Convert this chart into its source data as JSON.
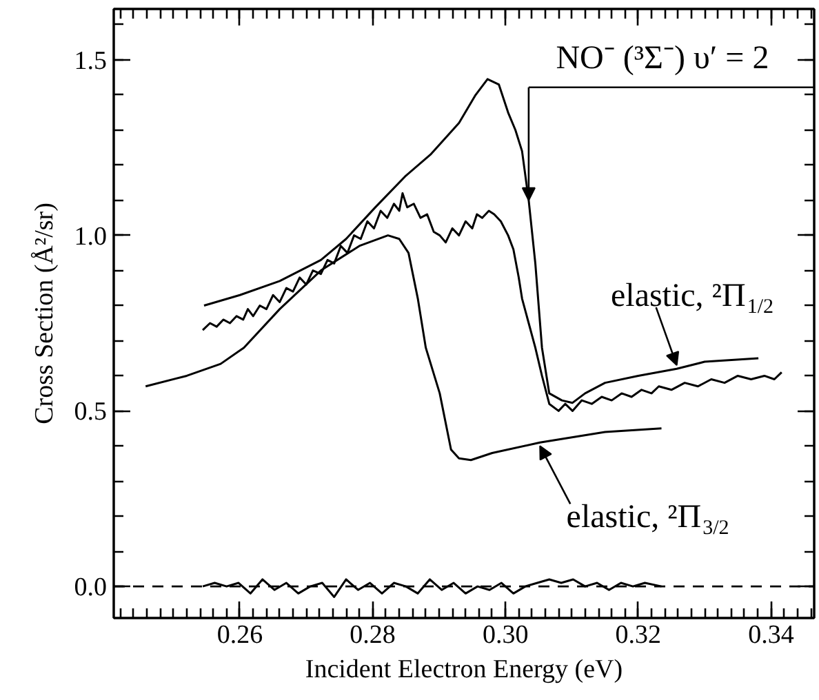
{
  "chart_data": {
    "type": "line",
    "xlabel": "Incident Electron Energy (eV)",
    "ylabel": "Cross Section (Å²/sr)",
    "xlim": [
      0.241,
      0.3465
    ],
    "ylim": [
      -0.09,
      1.645
    ],
    "xticks": [
      0.26,
      0.28,
      {
        "value": 0.3,
        "label": "0.30"
      },
      0.32,
      0.34
    ],
    "yticks": [
      {
        "value": 0,
        "label": "0.0"
      },
      {
        "value": 0.5,
        "label": "0.5"
      },
      {
        "value": 1,
        "label": "1.0"
      },
      {
        "value": 1.5,
        "label": "1.5"
      }
    ],
    "grid": false,
    "marker": "none",
    "line_style": "solid",
    "series": [
      {
        "color": "#000000",
        "x": [
          0.2546,
          0.26,
          0.266,
          0.2722,
          0.276,
          0.2804,
          0.285,
          0.2887,
          0.293,
          0.2955,
          0.2973,
          0.299,
          0.3004,
          0.3015,
          0.3025,
          0.3035,
          0.3045,
          0.3055,
          0.3066,
          0.3085,
          0.3101,
          0.312,
          0.315,
          0.32,
          0.3258,
          0.33,
          0.3381
        ],
        "values": [
          0.8,
          0.83,
          0.87,
          0.93,
          0.99,
          1.08,
          1.17,
          1.23,
          1.32,
          1.4,
          1.445,
          1.43,
          1.35,
          1.3,
          1.24,
          1.1,
          0.92,
          0.68,
          0.55,
          0.53,
          0.523,
          0.55,
          0.58,
          0.6,
          0.62,
          0.64,
          0.65
        ]
      },
      {
        "color": "#000000",
        "x": [
          0.2544,
          0.2555,
          0.2565,
          0.2575,
          0.2585,
          0.2595,
          0.2605,
          0.2612,
          0.262,
          0.263,
          0.264,
          0.265,
          0.266,
          0.267,
          0.268,
          0.269,
          0.27,
          0.271,
          0.2722,
          0.2732,
          0.2742,
          0.2752,
          0.2762,
          0.2772,
          0.2782,
          0.2792,
          0.2802,
          0.2812,
          0.2822,
          0.2832,
          0.284,
          0.2845,
          0.2852,
          0.2862,
          0.2872,
          0.2882,
          0.2892,
          0.2901,
          0.291,
          0.292,
          0.293,
          0.294,
          0.295,
          0.2957,
          0.2965,
          0.2975,
          0.2983,
          0.2993,
          0.3004,
          0.3012,
          0.302,
          0.3025,
          0.3035,
          0.3045,
          0.3055,
          0.3066,
          0.308,
          0.309,
          0.3101,
          0.3115,
          0.313,
          0.3145,
          0.316,
          0.3175,
          0.319,
          0.3205,
          0.322,
          0.3231,
          0.325,
          0.327,
          0.329,
          0.331,
          0.333,
          0.335,
          0.337,
          0.339,
          0.3405,
          0.3416
        ],
        "values": [
          0.73,
          0.75,
          0.74,
          0.76,
          0.75,
          0.77,
          0.76,
          0.79,
          0.77,
          0.8,
          0.79,
          0.83,
          0.81,
          0.85,
          0.84,
          0.88,
          0.86,
          0.9,
          0.89,
          0.93,
          0.92,
          0.97,
          0.95,
          1.0,
          0.99,
          1.04,
          1.02,
          1.07,
          1.05,
          1.09,
          1.07,
          1.12,
          1.08,
          1.09,
          1.05,
          1.06,
          1.01,
          1.0,
          0.98,
          1.02,
          1.0,
          1.04,
          1.02,
          1.06,
          1.05,
          1.07,
          1.06,
          1.04,
          1.0,
          0.96,
          0.88,
          0.82,
          0.75,
          0.68,
          0.6,
          0.52,
          0.5,
          0.52,
          0.5,
          0.53,
          0.52,
          0.54,
          0.53,
          0.55,
          0.54,
          0.56,
          0.55,
          0.57,
          0.56,
          0.58,
          0.57,
          0.59,
          0.58,
          0.6,
          0.59,
          0.6,
          0.59,
          0.61
        ]
      },
      {
        "color": "#000000",
        "x": [
          0.2458,
          0.252,
          0.2571,
          0.2606,
          0.266,
          0.2722,
          0.278,
          0.2823,
          0.284,
          0.2854,
          0.2868,
          0.288,
          0.2901,
          0.2918,
          0.293,
          0.2948,
          0.298,
          0.3052,
          0.315,
          0.3235
        ],
        "values": [
          0.57,
          0.6,
          0.634,
          0.68,
          0.79,
          0.9,
          0.97,
          1.0,
          0.99,
          0.95,
          0.82,
          0.68,
          0.55,
          0.39,
          0.365,
          0.36,
          0.38,
          0.41,
          0.44,
          0.45
        ]
      },
      {
        "color": "#000000",
        "x": [
          0.2544,
          0.2562,
          0.258,
          0.2598,
          0.2616,
          0.2634,
          0.2652,
          0.267,
          0.2688,
          0.2706,
          0.2724,
          0.2742,
          0.276,
          0.2778,
          0.2796,
          0.2814,
          0.2832,
          0.285,
          0.2868,
          0.2886,
          0.2904,
          0.2922,
          0.294,
          0.2958,
          0.2976,
          0.2994,
          0.3012,
          0.303,
          0.3048,
          0.3066,
          0.3084,
          0.3102,
          0.312,
          0.3138,
          0.3156,
          0.3174,
          0.3192,
          0.321,
          0.3235
        ],
        "values": [
          0.0,
          0.01,
          0.0,
          0.01,
          -0.02,
          0.02,
          -0.01,
          0.01,
          -0.02,
          0.0,
          0.01,
          -0.03,
          0.02,
          -0.01,
          0.01,
          -0.02,
          0.01,
          0.0,
          -0.02,
          0.02,
          -0.01,
          0.01,
          -0.02,
          0.0,
          -0.01,
          0.01,
          -0.02,
          0.0,
          0.01,
          0.02,
          0.01,
          0.02,
          0.0,
          0.01,
          -0.01,
          0.01,
          0.0,
          0.01,
          0.0
        ]
      }
    ],
    "ref_lines": [
      {
        "axis": "y",
        "value": 0,
        "color": "#000000",
        "line_style": "dashed"
      }
    ],
    "annotations": [
      {
        "text": "NO⁻ (³Σ⁻) υ′ = 2",
        "x": 0.3035,
        "y": 1.1
      },
      {
        "text": "elastic, ²Π$_{1/2}$",
        "x": 0.3258,
        "y": 0.63
      },
      {
        "text": "elastic, ²Π$_{3/2}$",
        "x": 0.3052,
        "y": 0.4
      }
    ]
  }
}
